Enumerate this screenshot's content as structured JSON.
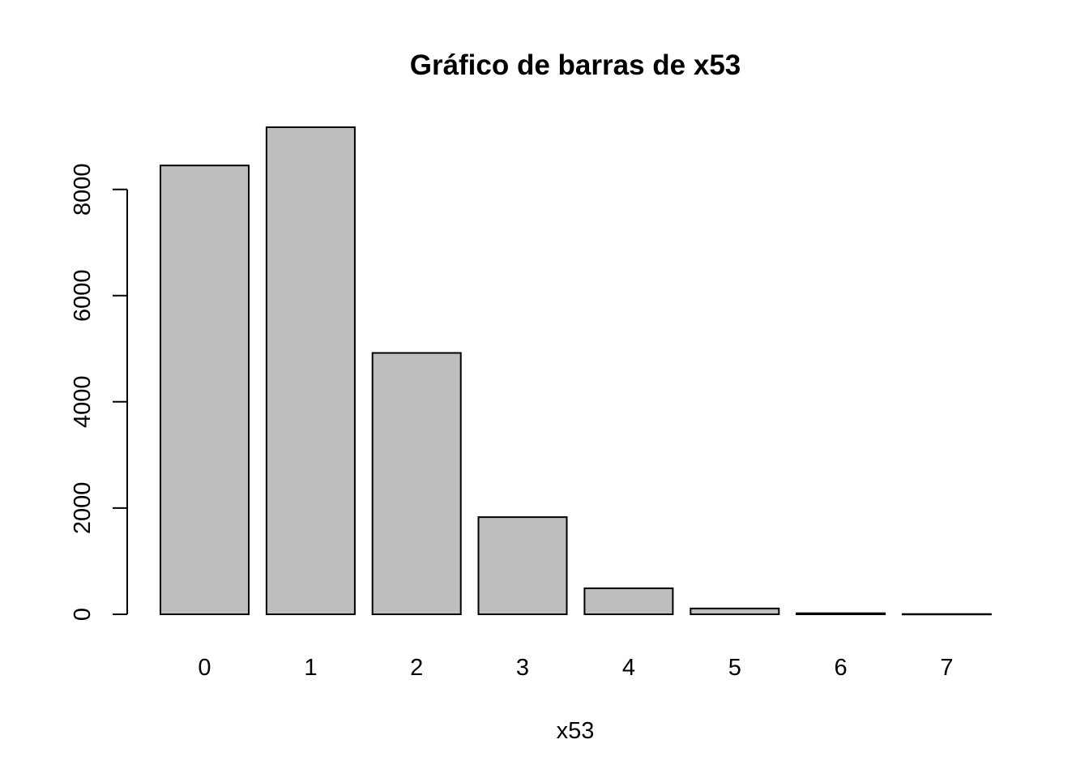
{
  "chart_data": {
    "type": "bar",
    "title": "Gráfico de barras de x53",
    "xlabel": "x53",
    "ylabel": "",
    "categories": [
      "0",
      "1",
      "2",
      "3",
      "4",
      "5",
      "6",
      "7"
    ],
    "values": [
      8450,
      9170,
      4920,
      1830,
      490,
      110,
      20,
      5
    ],
    "ylim": [
      0,
      9170
    ],
    "yticks": [
      0,
      2000,
      4000,
      6000,
      8000
    ],
    "ytick_labels": [
      "0",
      "2000",
      "4000",
      "6000",
      "8000"
    ],
    "bar_color": "#bebebe",
    "border_color": "#000000",
    "grid": false,
    "legend": "none"
  }
}
